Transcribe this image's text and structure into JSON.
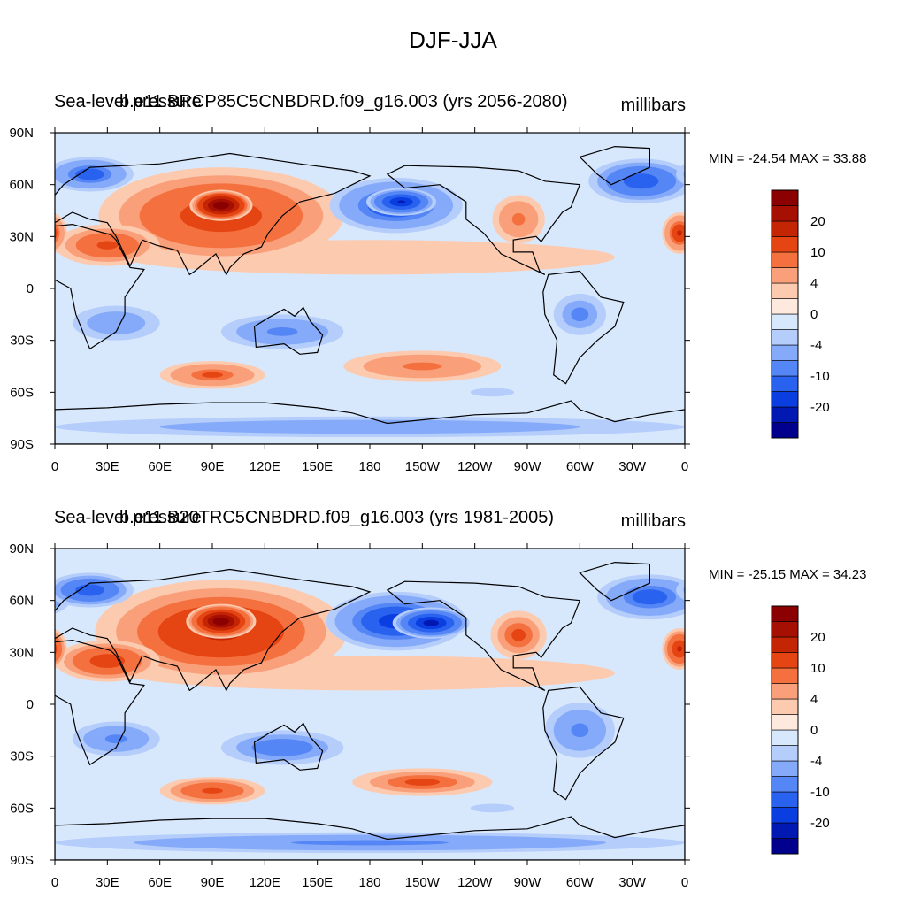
{
  "figure": {
    "title": "DJF-JJA"
  },
  "colors": {
    "levels": [
      "#00008c",
      "#0019b3",
      "#0b3ee0",
      "#2a62f0",
      "#5586f5",
      "#86aafa",
      "#b4cdfb",
      "#d8e8fc",
      "#fde9dd",
      "#fccaaf",
      "#f9a07a",
      "#f4713f",
      "#e54413",
      "#c42505",
      "#a61002",
      "#8b0000"
    ],
    "land_outline": "#000000"
  },
  "chart_data": [
    {
      "type": "contour-map",
      "id": "top",
      "left_label": "Sea-level pressure",
      "center_label": "b.e11.BRCP85C5CNBDRD.f09_g16.003 (yrs 2056-2080)",
      "units_label": "millibars",
      "stats": {
        "label": "MIN = -24.54 MAX =  33.88",
        "min": -24.54,
        "max": 33.88
      },
      "lon_range": [
        0,
        360
      ],
      "lat_range": [
        -90,
        90
      ],
      "x_tick_labels": [
        "0",
        "30E",
        "60E",
        "90E",
        "120E",
        "150E",
        "180",
        "150W",
        "120W",
        "90W",
        "60W",
        "30W",
        "0"
      ],
      "y_tick_labels": [
        "90N",
        "60N",
        "30N",
        "0",
        "30S",
        "60S",
        "90S"
      ],
      "colorbar_labels": [
        "20",
        "10",
        "4",
        "0",
        "-4",
        "-10",
        "-20"
      ],
      "features": [
        {
          "name": "bg",
          "lon": 180,
          "lat": 0,
          "rx": 220,
          "ry": 120,
          "value": -1
        },
        {
          "name": "tropics-pos",
          "lon": 180,
          "lat": 18,
          "rx": 140,
          "ry": 10,
          "value": 2
        },
        {
          "name": "arctic-neg",
          "lon": 0,
          "lat": 85,
          "rx": 200,
          "ry": 6,
          "value": -2
        },
        {
          "name": "eurasia-high",
          "lon": 95,
          "lat": 42,
          "rx": 70,
          "ry": 28,
          "value": 14
        },
        {
          "name": "tibet-peak",
          "lon": 95,
          "lat": 48,
          "rx": 18,
          "ry": 9,
          "value": 30
        },
        {
          "name": "africa-high",
          "lon": 30,
          "lat": 25,
          "rx": 30,
          "ry": 12,
          "value": 12
        },
        {
          "name": "aleutian-low",
          "lon": 195,
          "lat": 48,
          "rx": 38,
          "ry": 16,
          "value": -16
        },
        {
          "name": "aleutian-core",
          "lon": 198,
          "lat": 50,
          "rx": 20,
          "ry": 8,
          "value": -22
        },
        {
          "name": "iceland-low",
          "lon": 335,
          "lat": 62,
          "rx": 30,
          "ry": 13,
          "value": -15
        },
        {
          "name": "n-atlantic-low",
          "lon": 20,
          "lat": 66,
          "rx": 25,
          "ry": 10,
          "value": -14
        },
        {
          "name": "namerica-high",
          "lon": 265,
          "lat": 40,
          "rx": 15,
          "ry": 14,
          "value": 9
        },
        {
          "name": "azores-high",
          "lon": 357,
          "lat": 32,
          "rx": 10,
          "ry": 12,
          "value": 16
        },
        {
          "name": "s-africa-low",
          "lon": 35,
          "lat": -20,
          "rx": 25,
          "ry": 10,
          "value": -7
        },
        {
          "name": "australia-low",
          "lon": 130,
          "lat": -25,
          "rx": 35,
          "ry": 10,
          "value": -9
        },
        {
          "name": "s-america-low",
          "lon": 300,
          "lat": -15,
          "rx": 20,
          "ry": 16,
          "value": -8
        },
        {
          "name": "s-indian-high",
          "lon": 90,
          "lat": -50,
          "rx": 30,
          "ry": 8,
          "value": 11
        },
        {
          "name": "s-pacific-high",
          "lon": 210,
          "lat": -45,
          "rx": 45,
          "ry": 9,
          "value": 9
        },
        {
          "name": "s-pacific-low",
          "lon": 250,
          "lat": -60,
          "rx": 25,
          "ry": 5,
          "value": -4
        },
        {
          "name": "antarctic-mix",
          "lon": 180,
          "lat": -80,
          "rx": 180,
          "ry": 6,
          "value": -7
        }
      ]
    },
    {
      "type": "contour-map",
      "id": "bottom",
      "left_label": "Sea-level pressure",
      "center_label": "b.e11.B20TRC5CNBDRD.f09_g16.003 (yrs 1981-2005)",
      "units_label": "millibars",
      "stats": {
        "label": "MIN = -25.15 MAX =  34.23",
        "min": -25.15,
        "max": 34.23
      },
      "lon_range": [
        0,
        360
      ],
      "lat_range": [
        -90,
        90
      ],
      "x_tick_labels": [
        "0",
        "30E",
        "60E",
        "90E",
        "120E",
        "150E",
        "180",
        "150W",
        "120W",
        "90W",
        "60W",
        "30W",
        "0"
      ],
      "y_tick_labels": [
        "90N",
        "60N",
        "30N",
        "0",
        "30S",
        "60S",
        "90S"
      ],
      "colorbar_labels": [
        "20",
        "10",
        "4",
        "0",
        "-4",
        "-10",
        "-20"
      ],
      "features": [
        {
          "name": "bg",
          "lon": 180,
          "lat": 0,
          "rx": 220,
          "ry": 120,
          "value": -1
        },
        {
          "name": "tropics-pos",
          "lon": 180,
          "lat": 18,
          "rx": 140,
          "ry": 10,
          "value": 2
        },
        {
          "name": "arctic-neg",
          "lon": 0,
          "lat": 85,
          "rx": 200,
          "ry": 6,
          "value": -2
        },
        {
          "name": "eurasia-high",
          "lon": 95,
          "lat": 42,
          "rx": 72,
          "ry": 30,
          "value": 15
        },
        {
          "name": "tibet-peak",
          "lon": 95,
          "lat": 48,
          "rx": 20,
          "ry": 10,
          "value": 31
        },
        {
          "name": "africa-high",
          "lon": 30,
          "lat": 25,
          "rx": 30,
          "ry": 12,
          "value": 14
        },
        {
          "name": "aleutian-low",
          "lon": 195,
          "lat": 48,
          "rx": 40,
          "ry": 17,
          "value": -18
        },
        {
          "name": "aleutian-core",
          "lon": 215,
          "lat": 47,
          "rx": 22,
          "ry": 9,
          "value": -24
        },
        {
          "name": "iceland-low",
          "lon": 340,
          "lat": 62,
          "rx": 30,
          "ry": 13,
          "value": -14
        },
        {
          "name": "n-atlantic-low",
          "lon": 20,
          "lat": 66,
          "rx": 25,
          "ry": 10,
          "value": -15
        },
        {
          "name": "namerica-high",
          "lon": 265,
          "lat": 40,
          "rx": 16,
          "ry": 14,
          "value": 10
        },
        {
          "name": "azores-high",
          "lon": 357,
          "lat": 32,
          "rx": 10,
          "ry": 12,
          "value": 17
        },
        {
          "name": "s-africa-low",
          "lon": 35,
          "lat": -20,
          "rx": 25,
          "ry": 10,
          "value": -9
        },
        {
          "name": "australia-low",
          "lon": 130,
          "lat": -25,
          "rx": 35,
          "ry": 10,
          "value": -10
        },
        {
          "name": "s-america-low",
          "lon": 300,
          "lat": -15,
          "rx": 20,
          "ry": 16,
          "value": -9
        },
        {
          "name": "s-indian-high",
          "lon": 90,
          "lat": -50,
          "rx": 30,
          "ry": 8,
          "value": 12
        },
        {
          "name": "s-pacific-high",
          "lon": 210,
          "lat": -45,
          "rx": 40,
          "ry": 8,
          "value": 10
        },
        {
          "name": "s-pacific-low",
          "lon": 250,
          "lat": -60,
          "rx": 25,
          "ry": 5,
          "value": -3
        },
        {
          "name": "antarctic-mix",
          "lon": 180,
          "lat": -80,
          "rx": 180,
          "ry": 6,
          "value": -9
        }
      ]
    }
  ]
}
